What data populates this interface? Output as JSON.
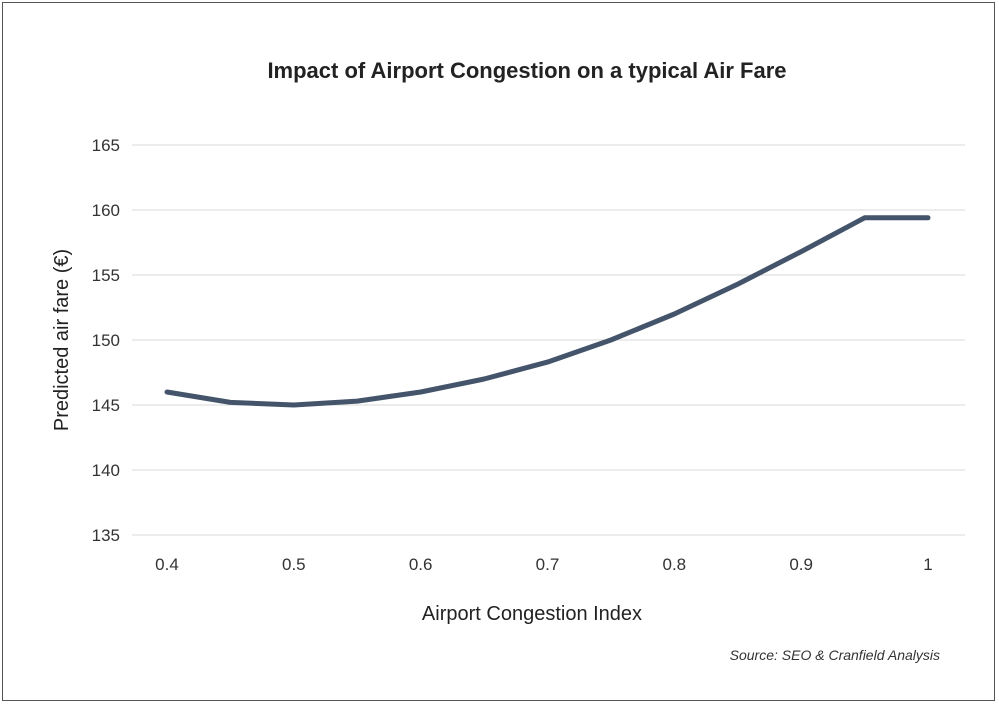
{
  "colors": {
    "series": "#44546a",
    "frame": "#555555",
    "grid": "#d9d9d9"
  },
  "chart_data": {
    "type": "line",
    "title": "Impact of Airport Congestion on a typical Air Fare",
    "xlabel": "Airport Congestion Index",
    "ylabel": "Predicted air fare (€)",
    "source": "Source: SEO & Cranfield Analysis",
    "xlim": [
      0.4,
      1.0
    ],
    "ylim": [
      135,
      165
    ],
    "x_ticks": [
      0.4,
      0.5,
      0.6,
      0.7,
      0.8,
      0.9,
      1.0
    ],
    "x_tick_labels": [
      "0.4",
      "0.5",
      "0.6",
      "0.7",
      "0.8",
      "0.9",
      "1"
    ],
    "y_ticks": [
      135,
      140,
      145,
      150,
      155,
      160,
      165
    ],
    "grid": true,
    "legend": "none",
    "series": [
      {
        "x": [
          0.4,
          0.45,
          0.5,
          0.55,
          0.6,
          0.65,
          0.7,
          0.75,
          0.8,
          0.85,
          0.9,
          0.95,
          1.0
        ],
        "values": [
          146.0,
          145.2,
          145.0,
          145.3,
          146.0,
          147.0,
          148.3,
          150.0,
          152.0,
          154.3,
          156.8,
          159.4,
          159.4
        ]
      }
    ]
  }
}
